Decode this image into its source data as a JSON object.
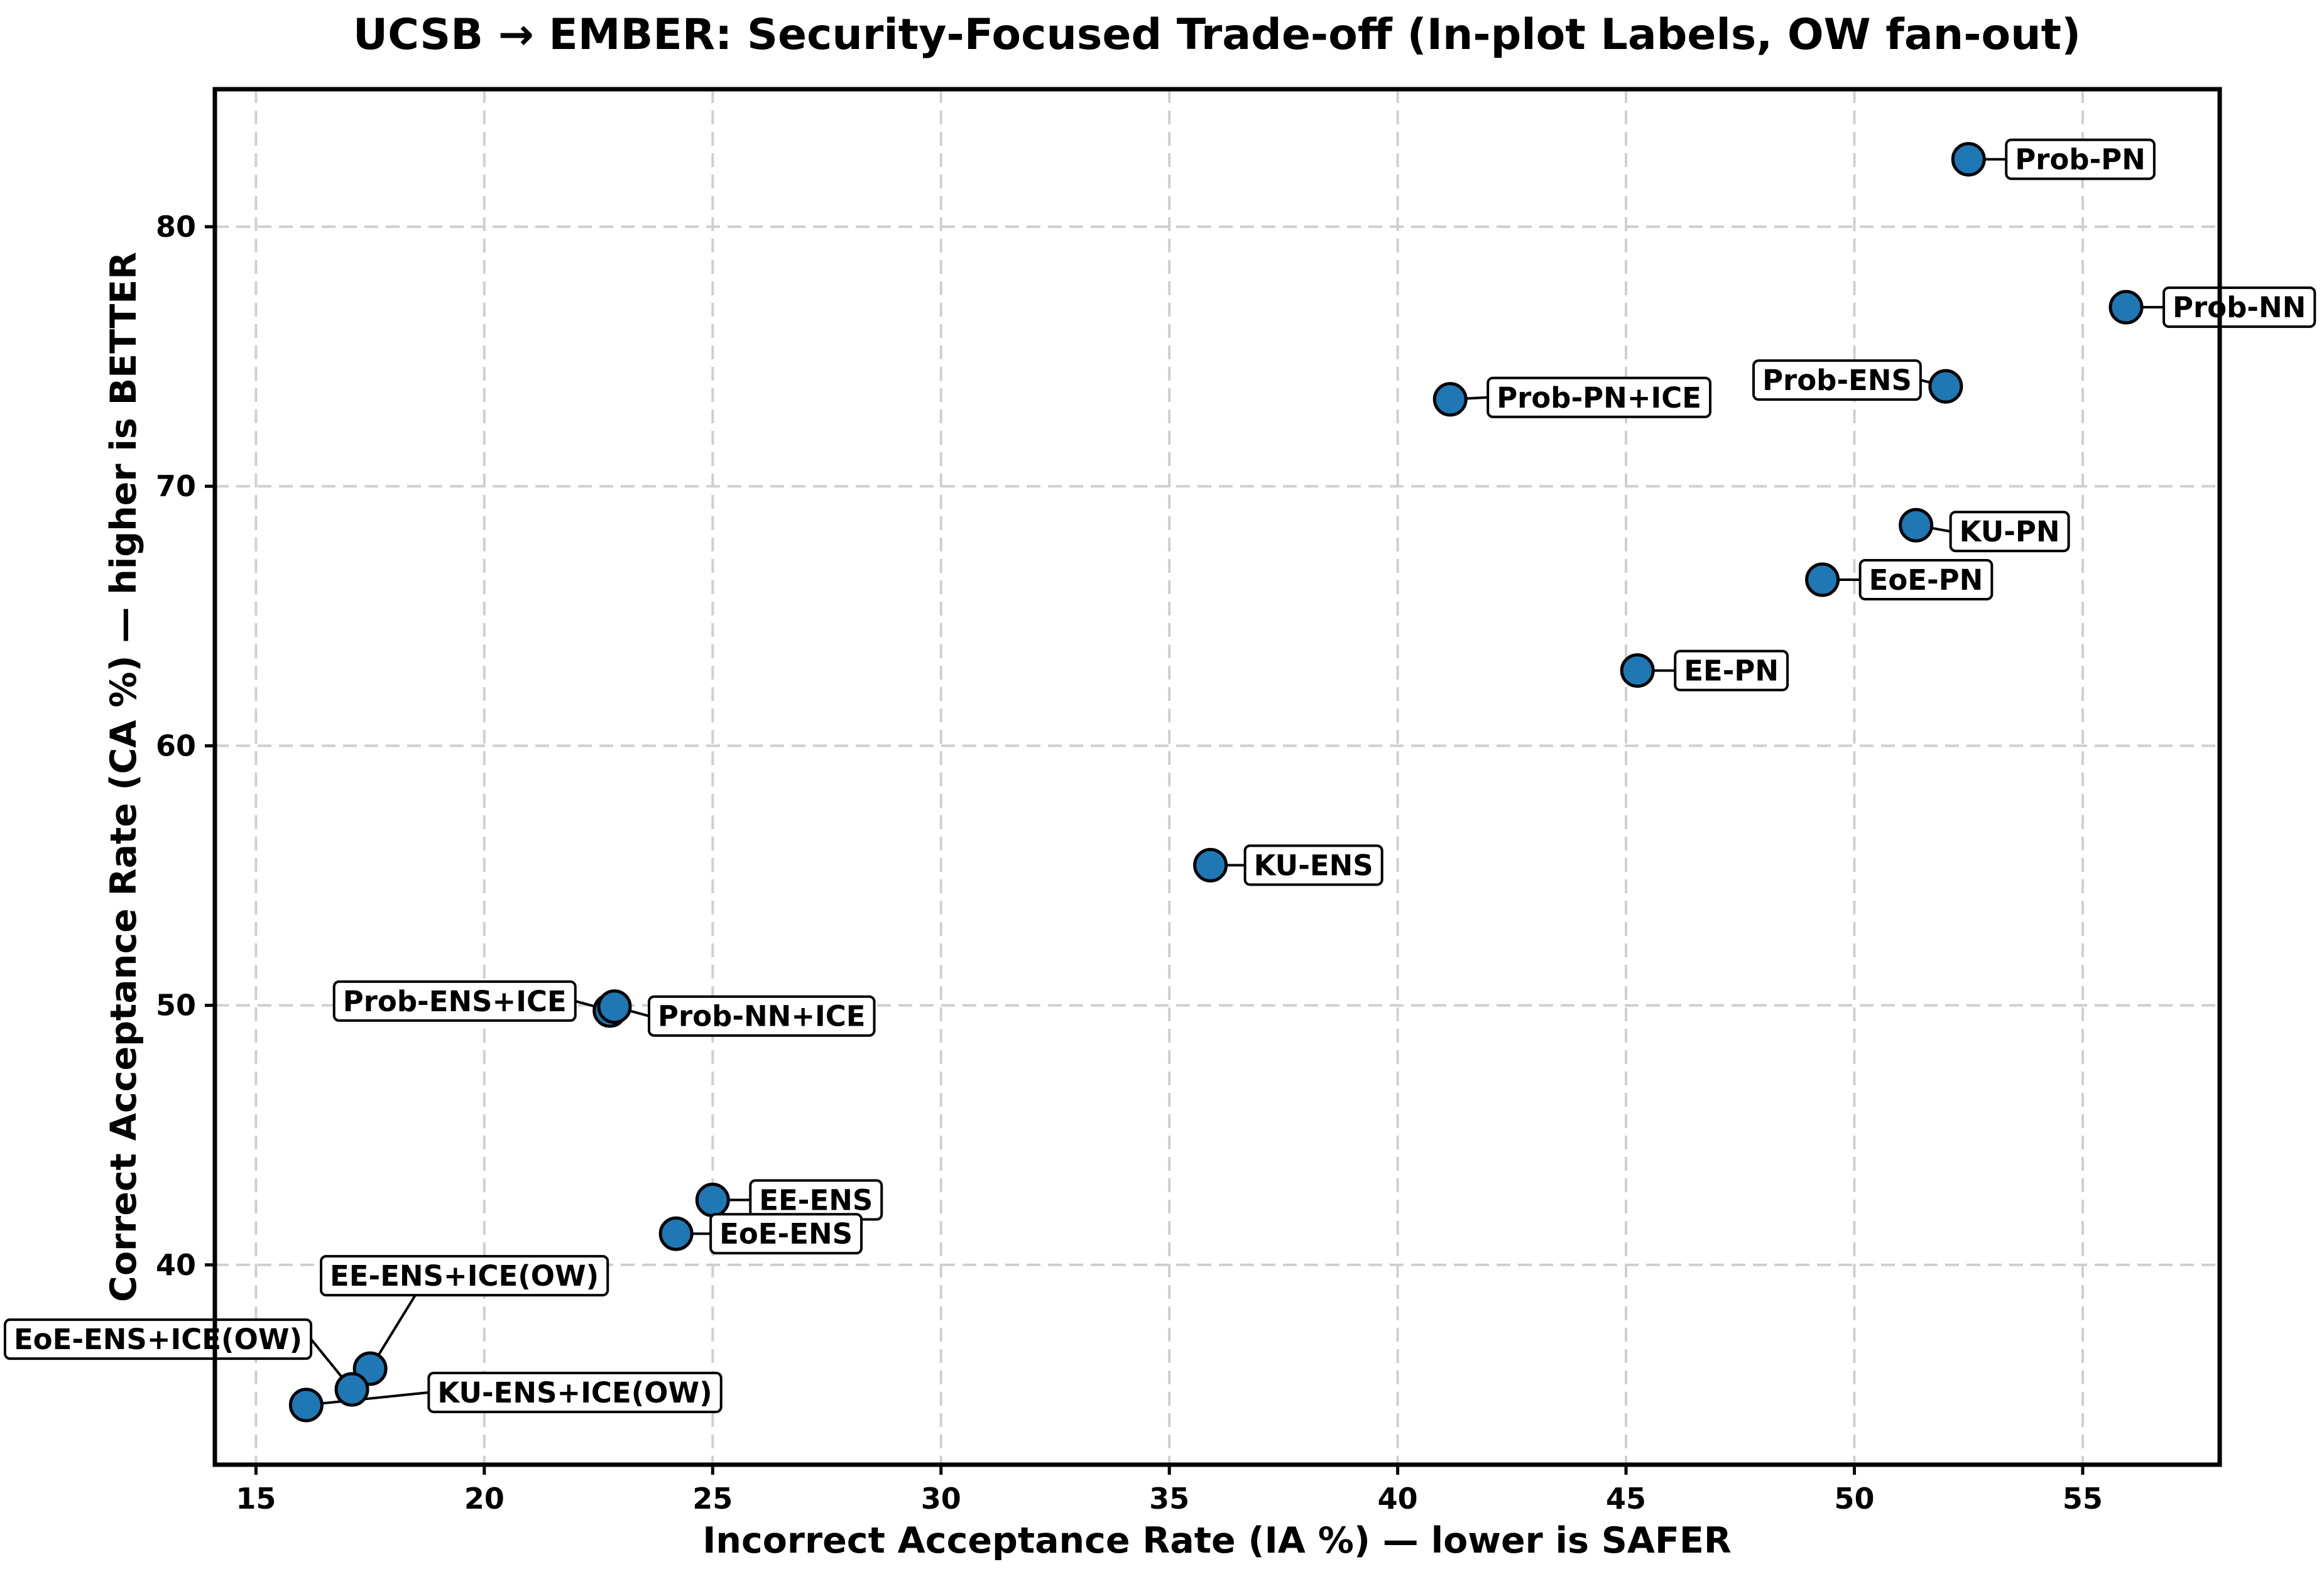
{
  "chart_data": {
    "type": "scatter",
    "title": "UCSB → EMBER: Security-Focused Trade-off (In-plot Labels, OW fan-out)",
    "xlabel": "Incorrect Acceptance Rate (IA %) — lower is SAFER",
    "ylabel": "Correct Acceptance Rate (CA %) — higher is BETTER",
    "xlim": [
      14.1,
      58.0
    ],
    "ylim": [
      32.3,
      85.3
    ],
    "xticks": [
      15,
      20,
      25,
      30,
      35,
      40,
      45,
      50,
      55
    ],
    "yticks": [
      40,
      50,
      60,
      70,
      80
    ],
    "grid": true,
    "marker_color": "#1f77b4",
    "points": [
      {
        "label": "Prob-PN",
        "x": 52.5,
        "y": 82.6
      },
      {
        "label": "Prob-NN",
        "x": 55.95,
        "y": 76.9
      },
      {
        "label": "Prob-ENS",
        "x": 52.0,
        "y": 73.85
      },
      {
        "label": "Prob-PN+ICE",
        "x": 41.15,
        "y": 73.35
      },
      {
        "label": "KU-PN",
        "x": 51.35,
        "y": 68.5
      },
      {
        "label": "EoE-PN",
        "x": 49.3,
        "y": 66.4
      },
      {
        "label": "EE-PN",
        "x": 45.25,
        "y": 62.9
      },
      {
        "label": "KU-ENS",
        "x": 35.9,
        "y": 55.4
      },
      {
        "label": "Prob-ENS+ICE",
        "x": 22.75,
        "y": 49.8
      },
      {
        "label": "Prob-NN+ICE",
        "x": 22.85,
        "y": 49.95
      },
      {
        "label": "EE-ENS",
        "x": 25.0,
        "y": 42.5
      },
      {
        "label": "EoE-ENS",
        "x": 24.2,
        "y": 41.2
      },
      {
        "label": "EE-ENS+ICE(OW)",
        "x": 17.5,
        "y": 36.0
      },
      {
        "label": "EoE-ENS+ICE(OW)",
        "x": 17.1,
        "y": 35.2
      },
      {
        "label": "KU-ENS+ICE(OW)",
        "x": 16.1,
        "y": 34.6
      }
    ]
  }
}
